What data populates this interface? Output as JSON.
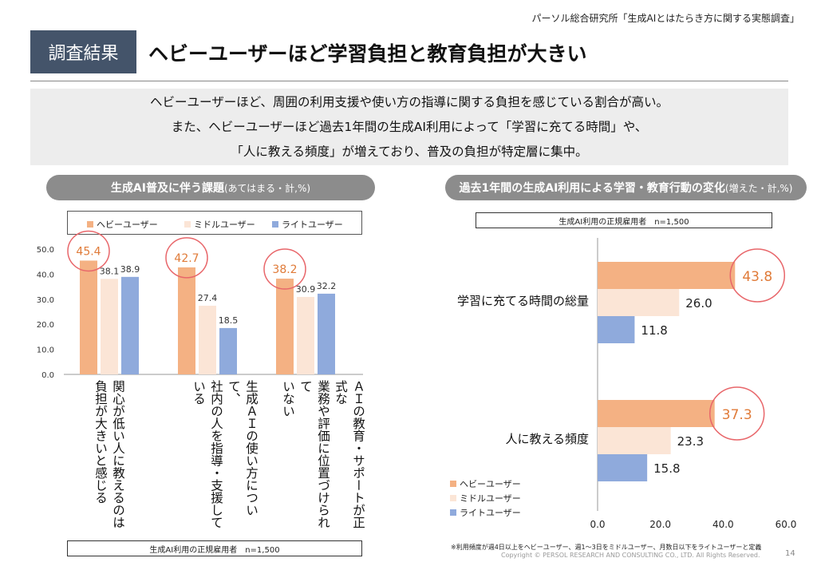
{
  "header": {
    "source": "パーソル総合研究所「生成AIとはたらき方に関する実態調査」",
    "badge": "調査結果",
    "title": "ヘビーユーザーほど学習負担と教育負担が大きい"
  },
  "summary": {
    "line1": "ヘビーユーザーほど、周囲の利用支援や使い方の指導に関する負担を感じている割合が高い。",
    "line2": "また、ヘビーユーザーほど過去1年間の生成AI利用によって「学習に充てる時間」や、",
    "line3": "「人に教える頻度」が増えており、普及の負担が特定層に集中。"
  },
  "left_panel": {
    "title": "生成AI普及に伴う課題",
    "title_sub": "(あてはまる・計,%)",
    "n_note": "生成AI利用の正規雇用者　n=1,500",
    "category_lines": [
      [
        "関心が低い人に教えるのは",
        "負担が大きいと感じる"
      ],
      [
        "生成ＡＩの使い方について、",
        "社内の人を指導・支援している"
      ],
      [
        "ＡＩの教育・サポートが正式な",
        "業務や評価に位置づけられて",
        "いない"
      ]
    ]
  },
  "right_panel": {
    "title": "過去1年間の生成AI利用による学習・教育行動の変化",
    "title_sub": "(増えた・計,%)",
    "n_note": "生成AI利用の正規雇用者　n=1,500"
  },
  "legend": [
    "ヘビーユーザー",
    "ミドルユーザー",
    "ライトユーザー"
  ],
  "colors": {
    "heavy": "#f4b183",
    "middle": "#fbe5d6",
    "light": "#8faadc",
    "highlight": "#e8666a",
    "accent_text": "#e07b39"
  },
  "chart_data": [
    {
      "type": "bar",
      "title": "生成AI普及に伴う課題",
      "categories": [
        "関心が低い人に教えるのは負担が大きいと感じる",
        "生成ＡＩの使い方について、社内の人を指導・支援している",
        "ＡＩの教育・サポートが正式な業務や評価に位置づけられていない"
      ],
      "series": [
        {
          "name": "ヘビーユーザー",
          "values": [
            45.4,
            42.7,
            38.2
          ]
        },
        {
          "name": "ミドルユーザー",
          "values": [
            38.1,
            27.4,
            30.9
          ]
        },
        {
          "name": "ライトユーザー",
          "values": [
            38.9,
            18.5,
            32.2
          ]
        }
      ],
      "ylim": [
        0,
        50
      ],
      "yticks": [
        "0.0",
        "10.0",
        "20.0",
        "30.0",
        "40.0",
        "50.0"
      ],
      "legend_position": "top"
    },
    {
      "type": "bar",
      "orientation": "horizontal",
      "title": "過去1年間の生成AI利用による学習・教育行動の変化",
      "categories": [
        "学習に充てる時間の総量",
        "人に教える頻度"
      ],
      "series": [
        {
          "name": "ヘビーユーザー",
          "values": [
            43.8,
            37.3
          ]
        },
        {
          "name": "ミドルユーザー",
          "values": [
            26.0,
            23.3
          ]
        },
        {
          "name": "ライトユーザー",
          "values": [
            11.8,
            15.8
          ]
        }
      ],
      "xlim": [
        0,
        60
      ],
      "xticks": [
        "0.0",
        "20.0",
        "40.0",
        "60.0"
      ],
      "legend_position": "bottom-left"
    }
  ],
  "footer": {
    "footnote": "※利用頻度が週4日以上をヘビーユーザー、週1～3日をミドルユーザー、月数日以下をライトユーザーと定義",
    "copyright": "Copyright © PERSOL RESEARCH AND CONSULTING CO., LTD. All Rights Reserved.",
    "page": "14"
  }
}
